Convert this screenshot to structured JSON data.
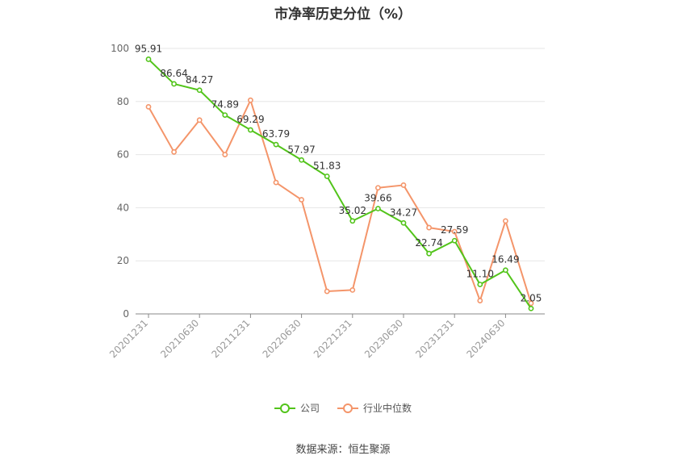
{
  "chart_data": {
    "type": "line",
    "title": "市净率历史分位（%）",
    "xlabel": "",
    "ylabel": "",
    "ylim": [
      0,
      100
    ],
    "yticks": [
      0,
      20,
      40,
      60,
      80,
      100
    ],
    "grid": true,
    "legend_position": "bottom",
    "x_tick_labels": [
      "20201231",
      "20210630",
      "20211231",
      "20220630",
      "20221231",
      "20230630",
      "20231231",
      "20240630"
    ],
    "series": [
      {
        "name": "公司",
        "color": "#52c41a",
        "values": [
          95.91,
          86.64,
          84.27,
          74.89,
          69.29,
          63.79,
          57.97,
          51.83,
          35.02,
          39.66,
          34.27,
          22.74,
          27.59,
          11.1,
          16.49,
          2.05
        ],
        "labels": [
          "95.91",
          "86.64",
          "84.27",
          "74.89",
          "69.29",
          "63.79",
          "57.97",
          "51.83",
          "35.02",
          "39.66",
          "34.27",
          "22.74",
          "27.59",
          "11.10",
          "16.49",
          "2.05"
        ]
      },
      {
        "name": "行业中位数",
        "color": "#f4956a",
        "values": [
          78,
          61,
          73,
          60,
          80.5,
          49.5,
          43,
          8.5,
          9,
          47.5,
          48.5,
          32.5,
          31,
          5,
          35,
          4
        ]
      }
    ],
    "source": "数据来源：恒生聚源"
  }
}
